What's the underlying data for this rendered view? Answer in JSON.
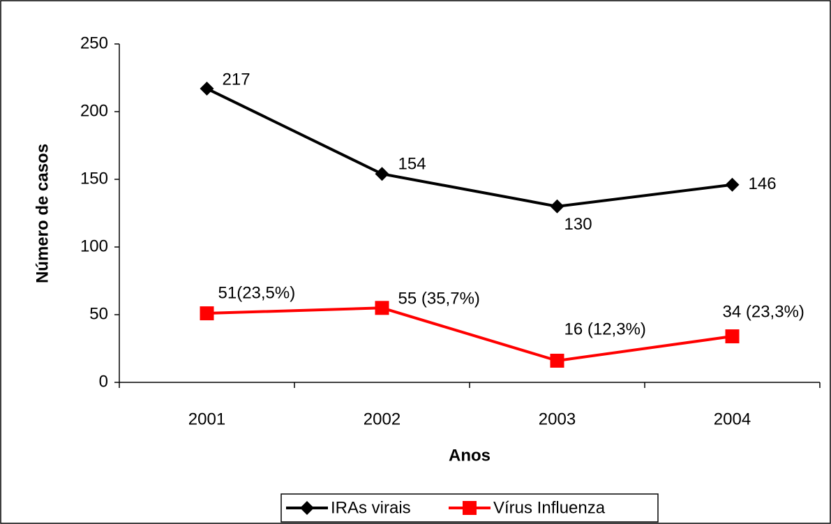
{
  "chart_data": {
    "type": "line",
    "x_label": "Anos",
    "y_label": "Número de casos",
    "categories": [
      "2001",
      "2002",
      "2003",
      "2004"
    ],
    "series": [
      {
        "name": "IRAs virais",
        "color": "#000000",
        "marker": "diamond",
        "values": [
          217,
          154,
          130,
          146
        ]
      },
      {
        "name": "Vírus Influenza",
        "color": "#ff0000",
        "marker": "square",
        "values": [
          51,
          55,
          16,
          34
        ],
        "value_labels": [
          "51(23,5%)",
          "55 (35,7%)",
          "16 (12,3%)",
          "34 (23,3%)"
        ]
      }
    ],
    "ylim": [
      0,
      250
    ],
    "yticks": [
      0,
      50,
      100,
      150,
      200,
      250
    ],
    "legend": "bottom"
  }
}
